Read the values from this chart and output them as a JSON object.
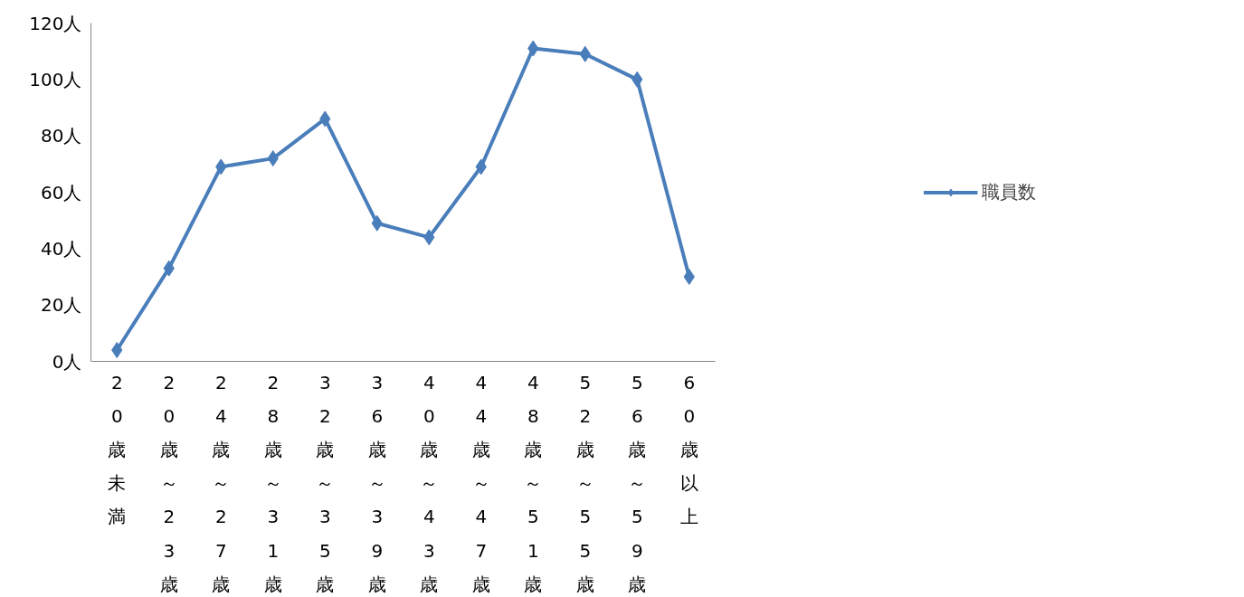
{
  "chart_data": {
    "type": "line",
    "categories": [
      "20歳未満",
      "20歳～23歳",
      "24歳～27歳",
      "28歳～31歳",
      "32歳～35歳",
      "36歳～39歳",
      "40歳～43歳",
      "44歳～47歳",
      "48歳～51歳",
      "52歳～55歳",
      "56歳～59歳",
      "60歳以上"
    ],
    "series": [
      {
        "name": "職員数",
        "color": "#4a7ebb",
        "values": [
          4,
          33,
          69,
          72,
          86,
          49,
          44,
          69,
          111,
          109,
          100,
          30
        ]
      }
    ],
    "ylim": [
      0,
      120
    ],
    "yticks": [
      {
        "value": 0,
        "label": "0人"
      },
      {
        "value": 20,
        "label": "20人"
      },
      {
        "value": 40,
        "label": "40人"
      },
      {
        "value": 60,
        "label": "60人"
      },
      {
        "value": 80,
        "label": "80人"
      },
      {
        "value": 100,
        "label": "100人"
      },
      {
        "value": 120,
        "label": "120人"
      }
    ],
    "grid": false,
    "legend": "right",
    "marker": "diamond",
    "line_style": "solid"
  }
}
